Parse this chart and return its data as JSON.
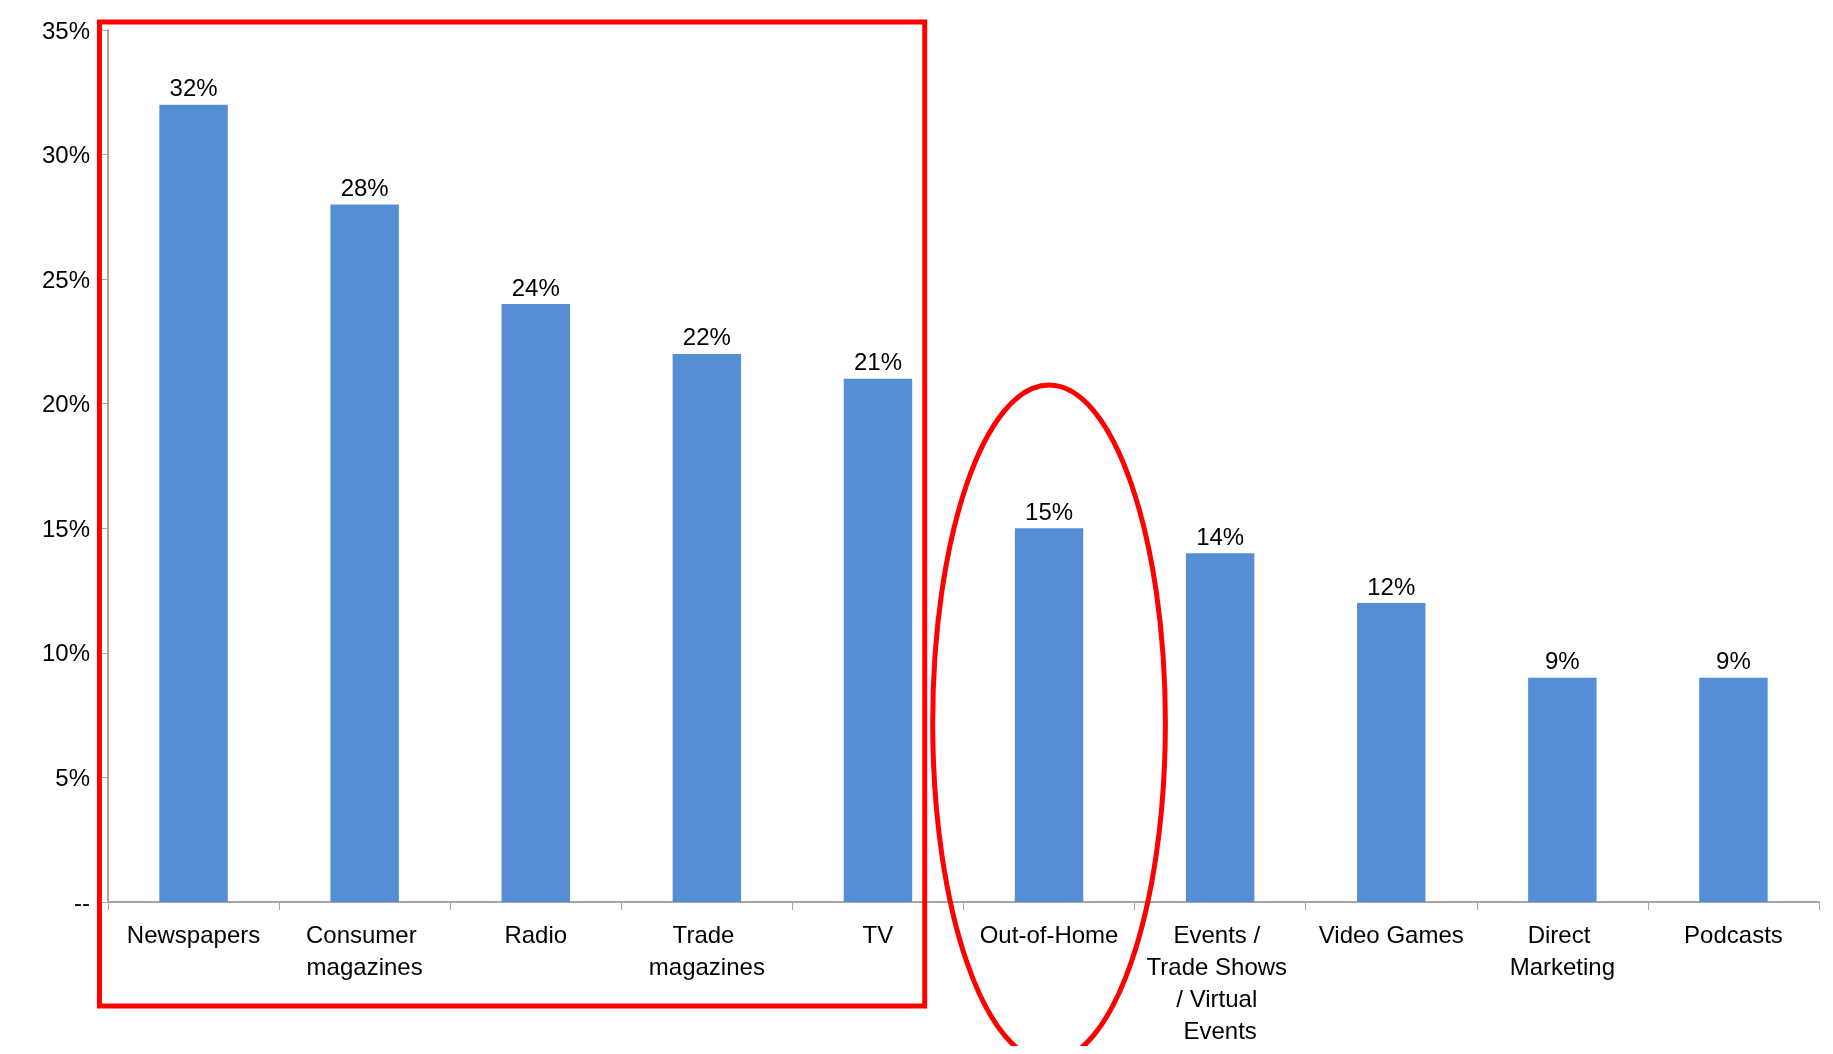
{
  "chart_data": {
    "type": "bar",
    "categories": [
      "Newspapers",
      "Consumer magazines",
      "Radio",
      "Trade magazines",
      "TV",
      "Out-of-Home",
      "Events / Trade Shows / Virtual Events",
      "Video Games",
      "Direct Marketing",
      "Podcasts"
    ],
    "values": [
      32,
      28,
      24,
      22,
      21,
      15,
      14,
      12,
      9,
      9
    ],
    "value_labels": [
      "32%",
      "28%",
      "24%",
      "22%",
      "21%",
      "15%",
      "14%",
      "12%",
      "9%",
      "9%"
    ],
    "color": "#558ed5",
    "ylim": [
      0,
      35
    ],
    "yticks": [
      {
        "value": 0,
        "label": "--"
      },
      {
        "value": 5,
        "label": "5%"
      },
      {
        "value": 10,
        "label": "10%"
      },
      {
        "value": 15,
        "label": "15%"
      },
      {
        "value": 20,
        "label": "20%"
      },
      {
        "value": 25,
        "label": "25%"
      },
      {
        "value": 30,
        "label": "30%"
      },
      {
        "value": 35,
        "label": "35%"
      }
    ],
    "grid": false
  }
}
